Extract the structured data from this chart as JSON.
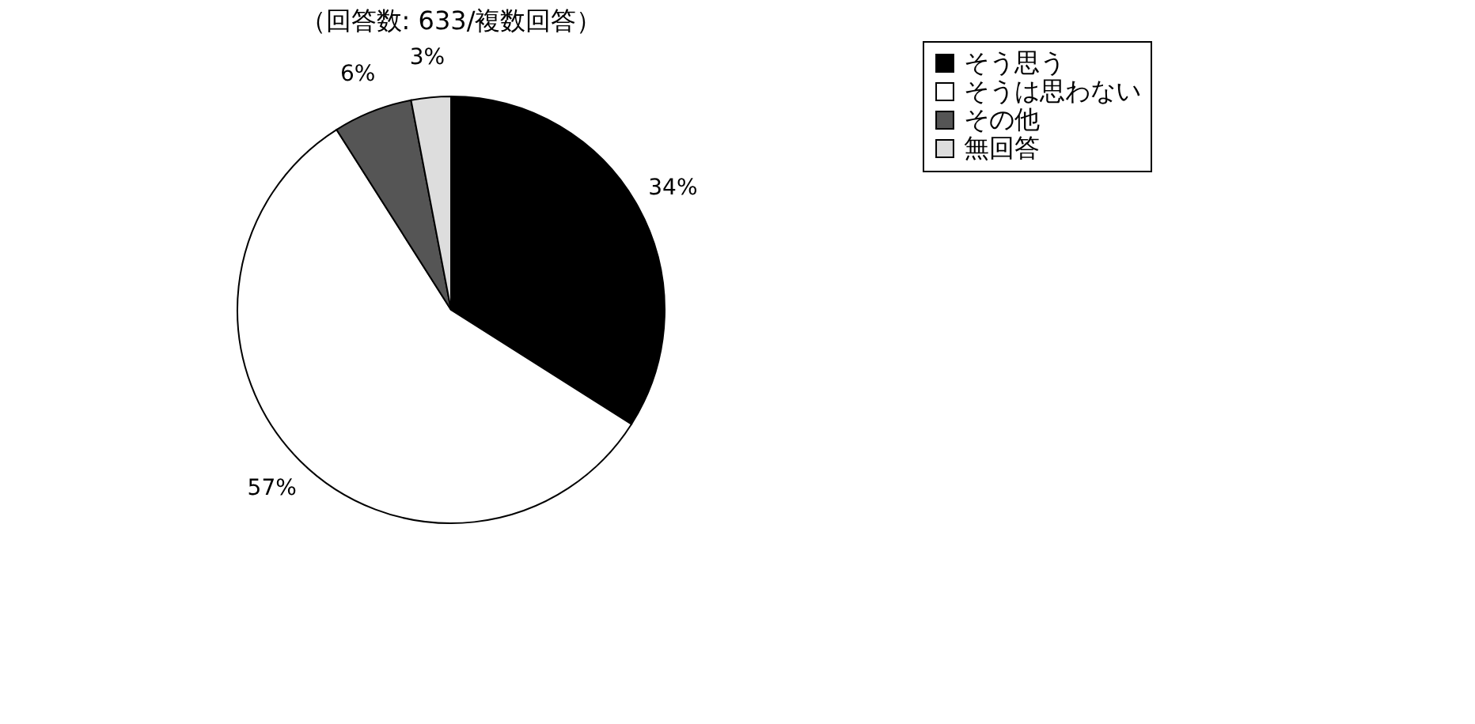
{
  "chart_data": {
    "type": "pie",
    "title": "（回答数: 633/複数回答）",
    "categories": [
      "そう思う",
      "そうは思わない",
      "その他",
      "無回答"
    ],
    "values": [
      34,
      57,
      6,
      3
    ],
    "colors": [
      "#000000",
      "#ffffff",
      "#555555",
      "#dddddd"
    ],
    "value_labels": [
      "34%",
      "57%",
      "6%",
      "3%"
    ],
    "legend": "right"
  }
}
